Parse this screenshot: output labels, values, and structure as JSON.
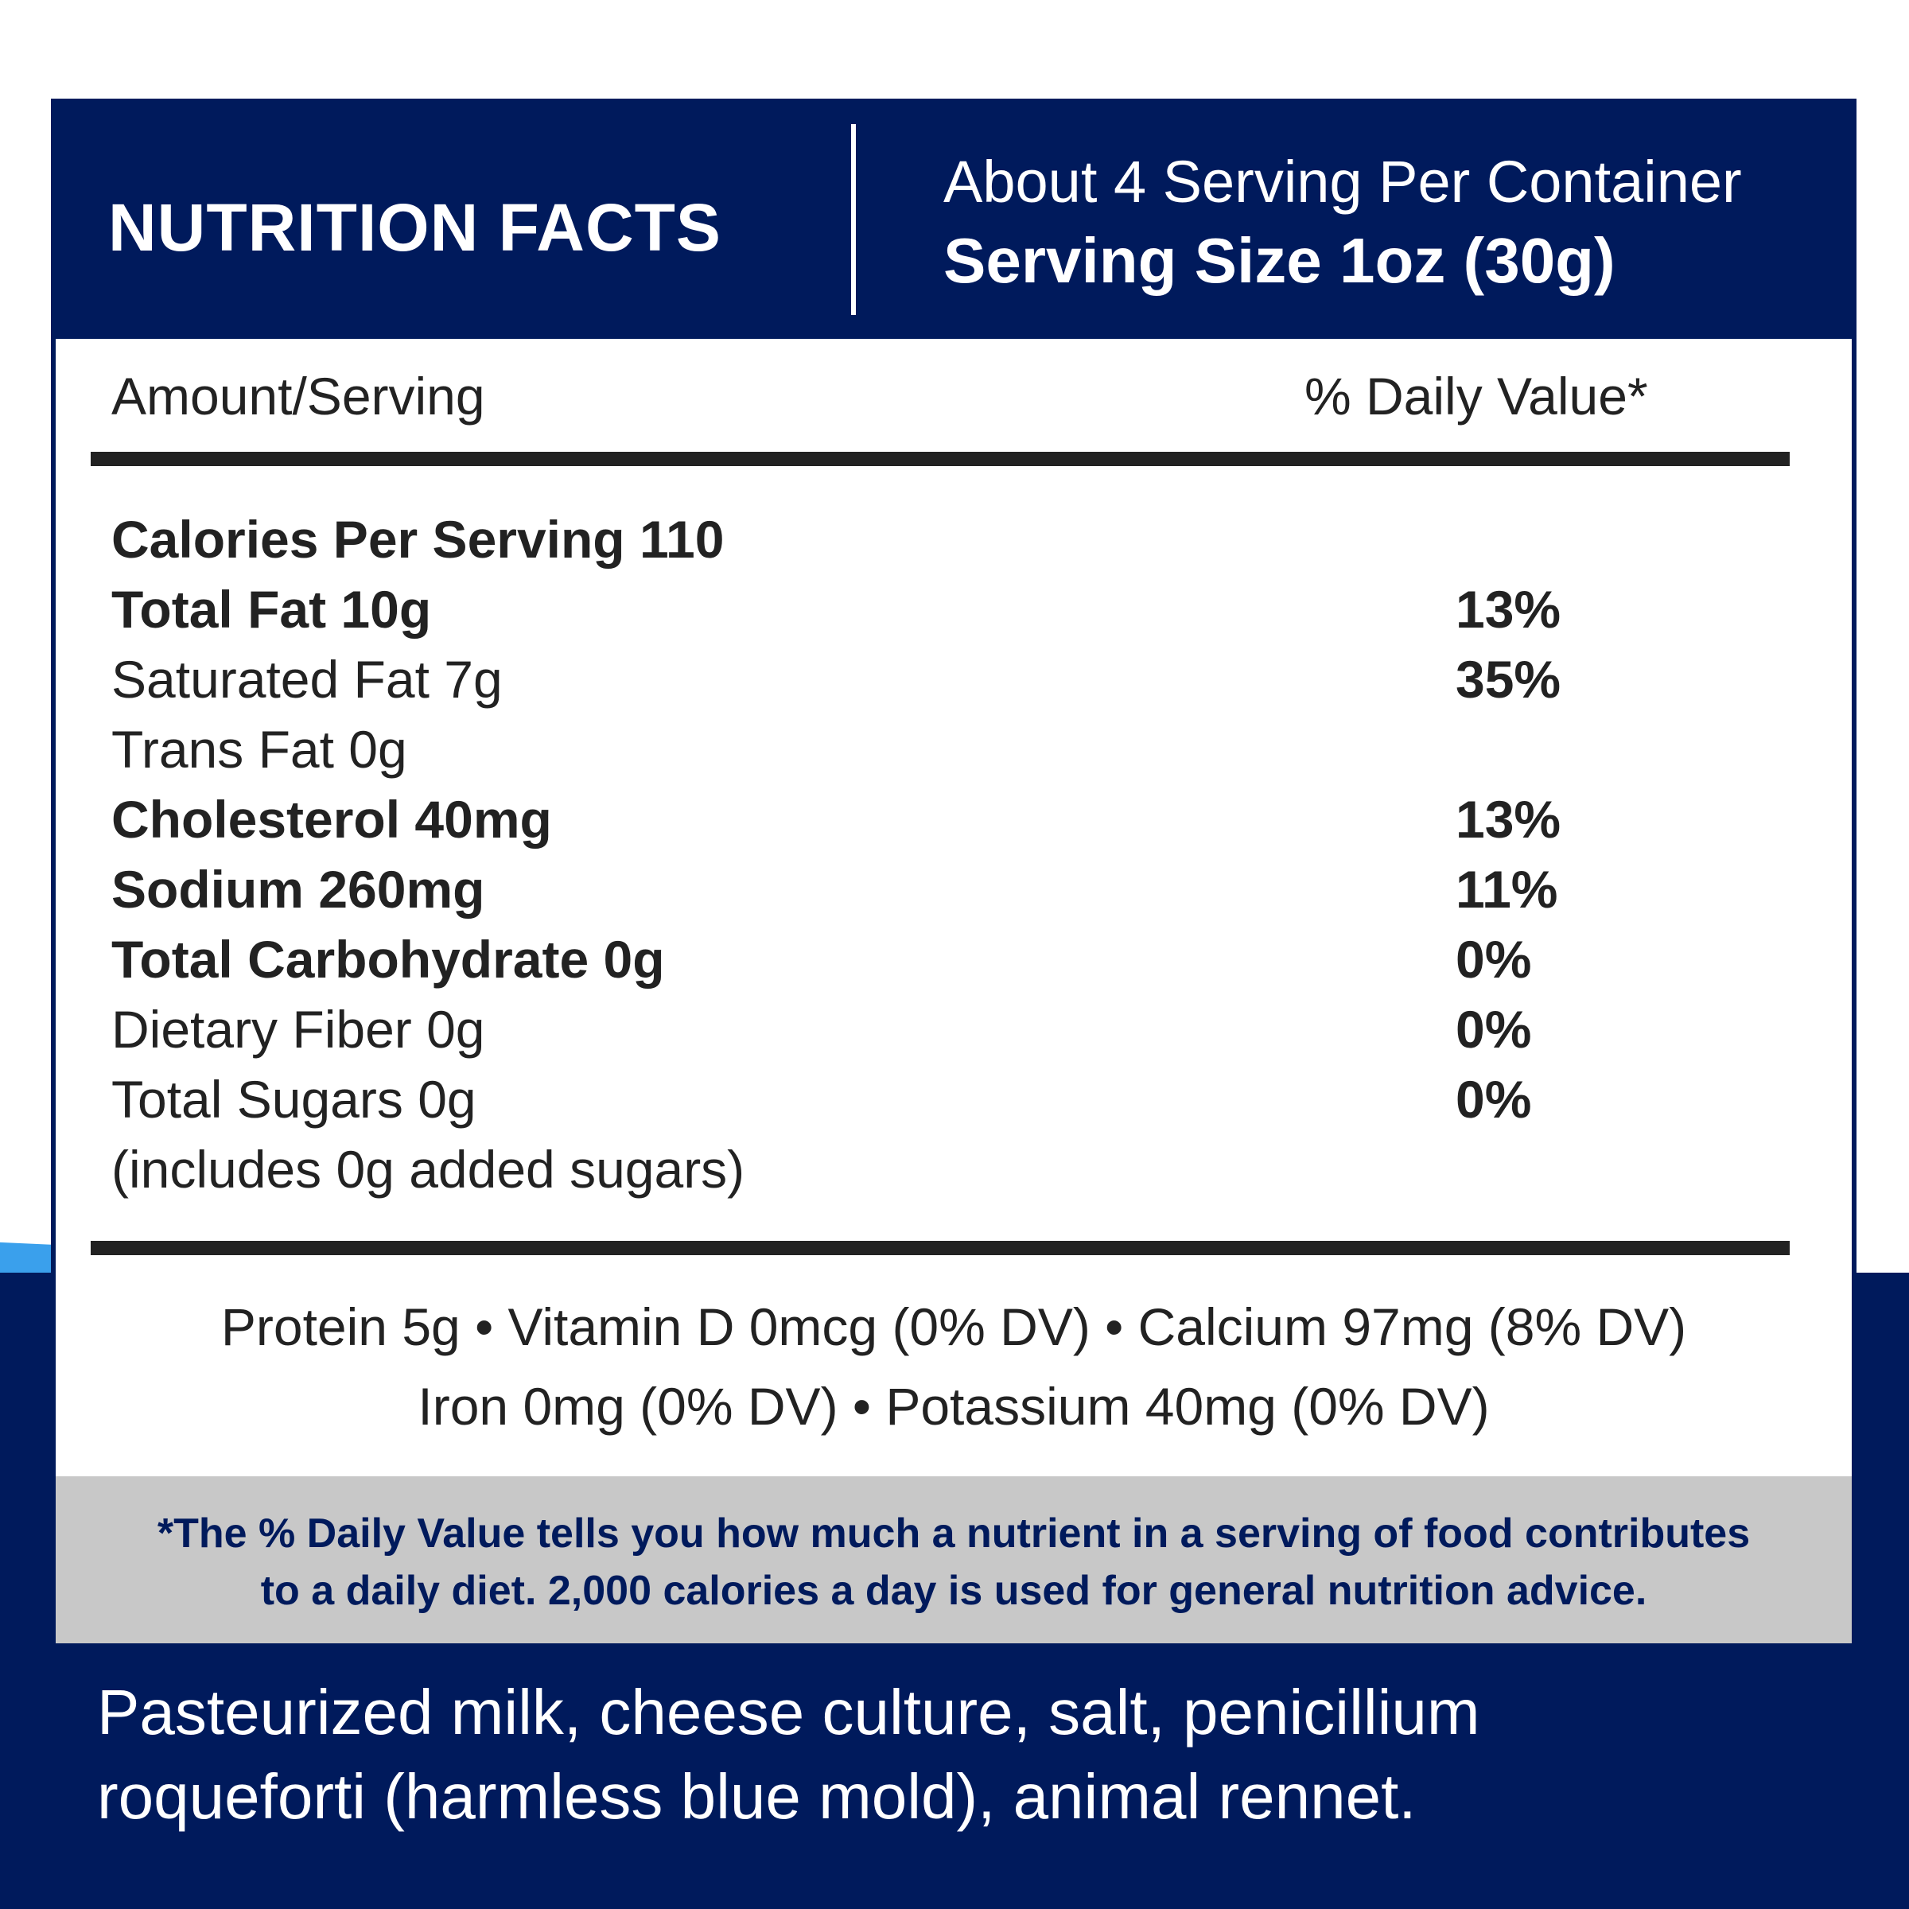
{
  "colors": {
    "navy": "#001a5c",
    "accent_blue": "#3aa0ec",
    "footnote_bg": "#c8c8c8",
    "text_dark": "#222222"
  },
  "header": {
    "title": "NUTRITION FACTS",
    "servings": "About 4 Serving Per Container",
    "serving_size": "Serving Size 1oz (30g)"
  },
  "columns": {
    "amount": "Amount/Serving",
    "daily_value": "% Daily Value*"
  },
  "nutrients": [
    {
      "name": "Calories Per Serving 110",
      "dv": "",
      "bold": true
    },
    {
      "name": "Total Fat 10g",
      "dv": "13%",
      "bold": true
    },
    {
      "name": "Saturated Fat 7g",
      "dv": "35%",
      "bold": false
    },
    {
      "name": "Trans Fat 0g",
      "dv": "",
      "bold": false
    },
    {
      "name": "Cholesterol 40mg",
      "dv": "13%",
      "bold": true
    },
    {
      "name": "Sodium 260mg",
      "dv": "11%",
      "bold": true
    },
    {
      "name": "Total Carbohydrate 0g",
      "dv": "0%",
      "bold": true
    },
    {
      "name": "Dietary Fiber 0g",
      "dv": "0%",
      "bold": false
    },
    {
      "name": "Total Sugars 0g",
      "dv": "0%",
      "bold": false
    },
    {
      "name": "(includes 0g added sugars)",
      "dv": "",
      "bold": false
    }
  ],
  "vitamins": {
    "line1": "Protein 5g • Vitamin D  0mcg (0% DV) • Calcium 97mg (8% DV)",
    "line2": "Iron 0mg (0% DV) • Potassium 40mg (0% DV)"
  },
  "footnote": {
    "line1": "*The % Daily Value tells you how much a nutrient in a serving of food contributes",
    "line2": "to a daily diet. 2,000 calories a day is used for general nutrition advice."
  },
  "ingredients": {
    "line1": "Pasteurized milk, cheese culture, salt, penicillium",
    "line2": "roqueforti (harmless blue mold), animal rennet."
  }
}
